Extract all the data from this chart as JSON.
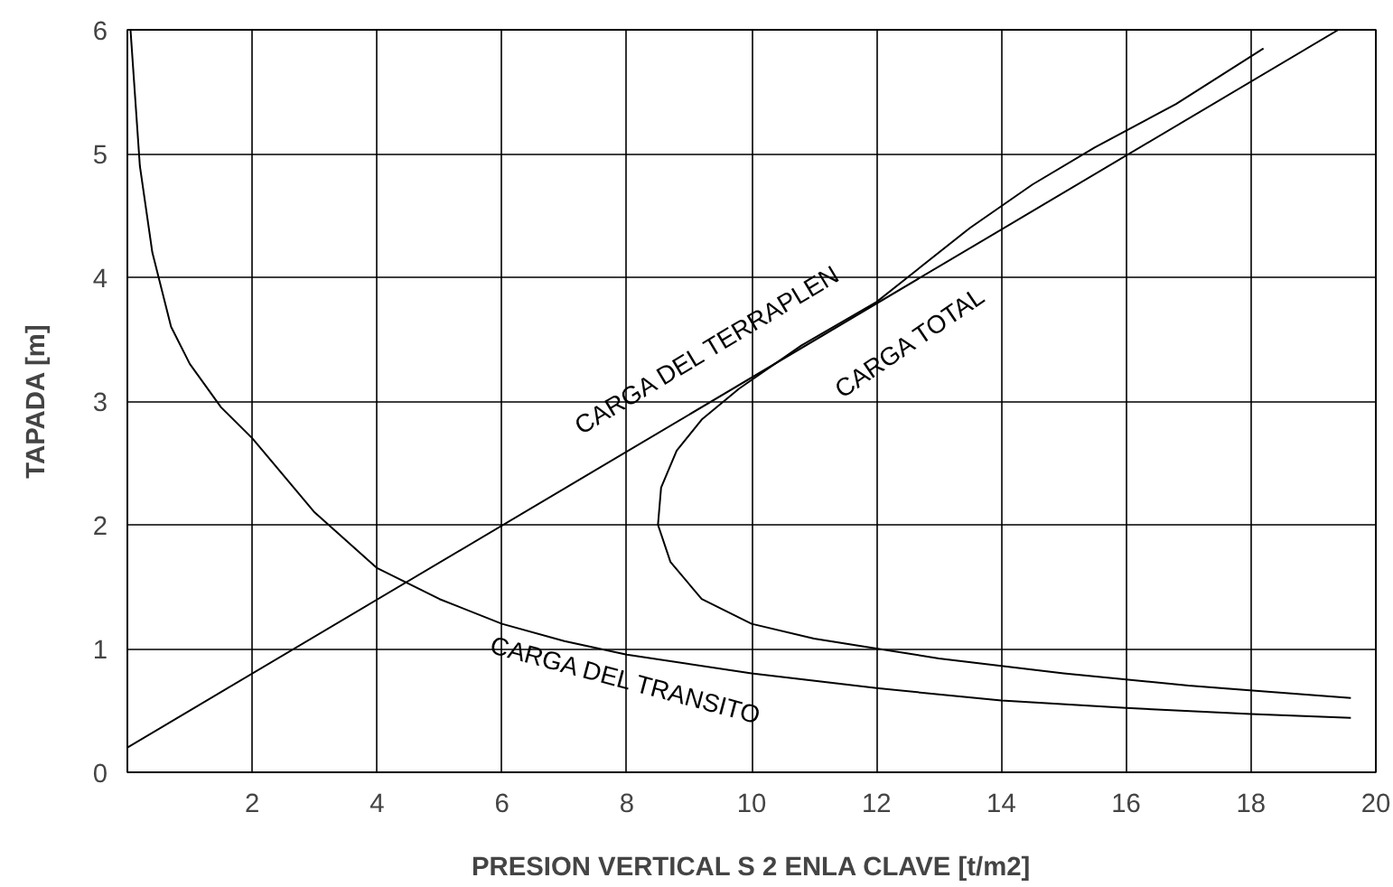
{
  "chart_data": {
    "type": "line",
    "xlabel": "PRESION VERTICAL S 2 ENLA CLAVE [t/m2]",
    "ylabel": "TAPADA [m]",
    "xlim": [
      0,
      20
    ],
    "ylim": [
      0,
      6
    ],
    "xticks": [
      {
        "value": 0,
        "label": null
      },
      2,
      4,
      6,
      8,
      10,
      12,
      14,
      16,
      18,
      20
    ],
    "yticks": [
      0,
      1,
      2,
      3,
      4,
      5,
      6
    ],
    "grid": true,
    "marker": "none",
    "line_style": "solid",
    "series": [
      {
        "name": "CARGA DEL TERRAPLEN",
        "color": "#000000",
        "x": [
          0,
          19.4
        ],
        "values": [
          0.2,
          6
        ]
      },
      {
        "name": "CARGA DEL TRANSITO",
        "color": "#000000",
        "x": [
          0.05,
          0.2,
          0.4,
          0.7,
          1,
          1.5,
          2,
          3,
          4,
          5,
          6,
          7,
          8,
          10,
          12,
          14,
          16,
          18,
          19.6
        ],
        "values": [
          6,
          4.9,
          4.2,
          3.6,
          3.3,
          2.95,
          2.7,
          2.1,
          1.65,
          1.4,
          1.2,
          1.06,
          0.95,
          0.8,
          0.68,
          0.58,
          0.52,
          0.47,
          0.44
        ]
      },
      {
        "name": "CARGA TOTAL",
        "color": "#000000",
        "x": [
          19.6,
          17,
          15,
          13,
          12,
          11,
          10,
          9.2,
          8.7,
          8.5,
          8.55,
          8.8,
          9.2,
          9.8,
          10.8,
          12,
          12.5,
          13.5,
          14.5,
          15.5,
          16.8,
          18.2
        ],
        "values": [
          0.6,
          0.7,
          0.8,
          0.92,
          1,
          1.08,
          1.2,
          1.4,
          1.7,
          2,
          2.3,
          2.6,
          2.85,
          3.1,
          3.45,
          3.8,
          4,
          4.4,
          4.75,
          5.05,
          5.4,
          5.85
        ]
      }
    ]
  }
}
